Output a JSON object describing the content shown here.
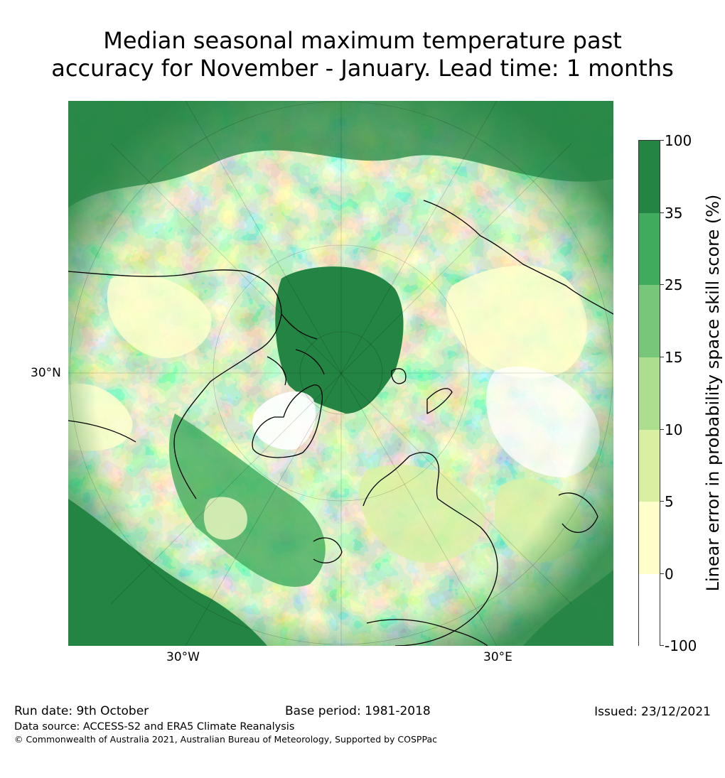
{
  "title": {
    "line1": "Median seasonal maximum temperature past",
    "line2": "accuracy for November - January. Lead time: 1 months"
  },
  "map": {
    "projection": "north-polar-stereographic",
    "lat_label": "30°N",
    "lon_labels": [
      "30°W",
      "30°E"
    ]
  },
  "colorbar": {
    "title": "Linear error in probability space skill score (%)",
    "tick_labels": [
      "100",
      "35",
      "25",
      "15",
      "10",
      "5",
      "0",
      "-100"
    ],
    "bins": [
      {
        "range": "35 to 100",
        "color": "#238443"
      },
      {
        "range": "25 to 35",
        "color": "#41ab5d"
      },
      {
        "range": "15 to 25",
        "color": "#78c679"
      },
      {
        "range": "10 to 15",
        "color": "#addd8e"
      },
      {
        "range": "5 to 10",
        "color": "#d9f0a3"
      },
      {
        "range": "0 to 5",
        "color": "#ffffcc"
      },
      {
        "range": "-100 to 0",
        "color": "#ffffff"
      }
    ]
  },
  "footer": {
    "run_date": "Run date: 9th October",
    "base_period": "Base period: 1981-2018",
    "issued": "Issued: 23/12/2021",
    "data_source": "Data source: ACCESS-S2 and ERA5 Climate Reanalysis",
    "copyright": "© Commonwealth of Australia 2021, Australian Bureau of Meteorology, Supported by COSPPac"
  }
}
